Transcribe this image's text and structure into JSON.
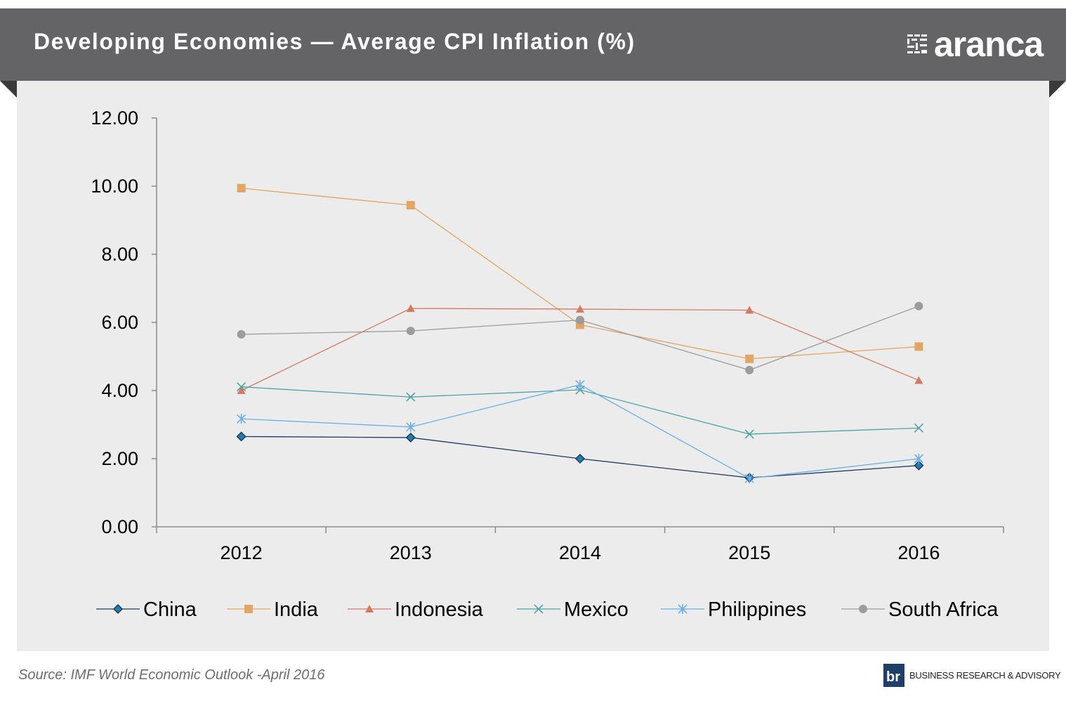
{
  "header": {
    "title": "Developing Economies — Average CPI Inflation (%)",
    "logo_text": "aranca"
  },
  "footer": {
    "source": "Source: IMF World Economic Outlook -April 2016",
    "tagline": "BUSINESS RESEARCH & ADVISORY"
  },
  "colors": {
    "header_bg": "#646466",
    "panel_bg": "#ececec",
    "badge": "#1f3f6b"
  },
  "chart_data": {
    "type": "line",
    "title": "Developing Economies — Average CPI Inflation (%)",
    "xlabel": "",
    "ylabel": "",
    "ylim": [
      0,
      12
    ],
    "y_ticks": [
      "0.00",
      "2.00",
      "4.00",
      "6.00",
      "8.00",
      "10.00",
      "12.00"
    ],
    "categories": [
      "2012",
      "2013",
      "2014",
      "2015",
      "2016"
    ],
    "grid": false,
    "legend_position": "bottom",
    "series": [
      {
        "name": "China",
        "values": [
          2.65,
          2.62,
          2.0,
          1.44,
          1.8
        ],
        "color": "#1f3864",
        "marker": "diamond"
      },
      {
        "name": "India",
        "values": [
          9.94,
          9.44,
          5.93,
          4.93,
          5.29
        ],
        "color": "#e3a564",
        "marker": "square"
      },
      {
        "name": "Indonesia",
        "values": [
          4.0,
          6.41,
          6.39,
          6.36,
          4.3
        ],
        "color": "#d47a62",
        "marker": "triangle"
      },
      {
        "name": "Mexico",
        "values": [
          4.11,
          3.81,
          4.02,
          2.72,
          2.9
        ],
        "color": "#4ea3a3",
        "marker": "x"
      },
      {
        "name": "Philippines",
        "values": [
          3.17,
          2.93,
          4.17,
          1.42,
          2.0
        ],
        "color": "#6aaee3",
        "marker": "asterisk"
      },
      {
        "name": "South Africa",
        "values": [
          5.65,
          5.75,
          6.07,
          4.6,
          6.48
        ],
        "color": "#9c9c9c",
        "marker": "circle"
      }
    ]
  }
}
